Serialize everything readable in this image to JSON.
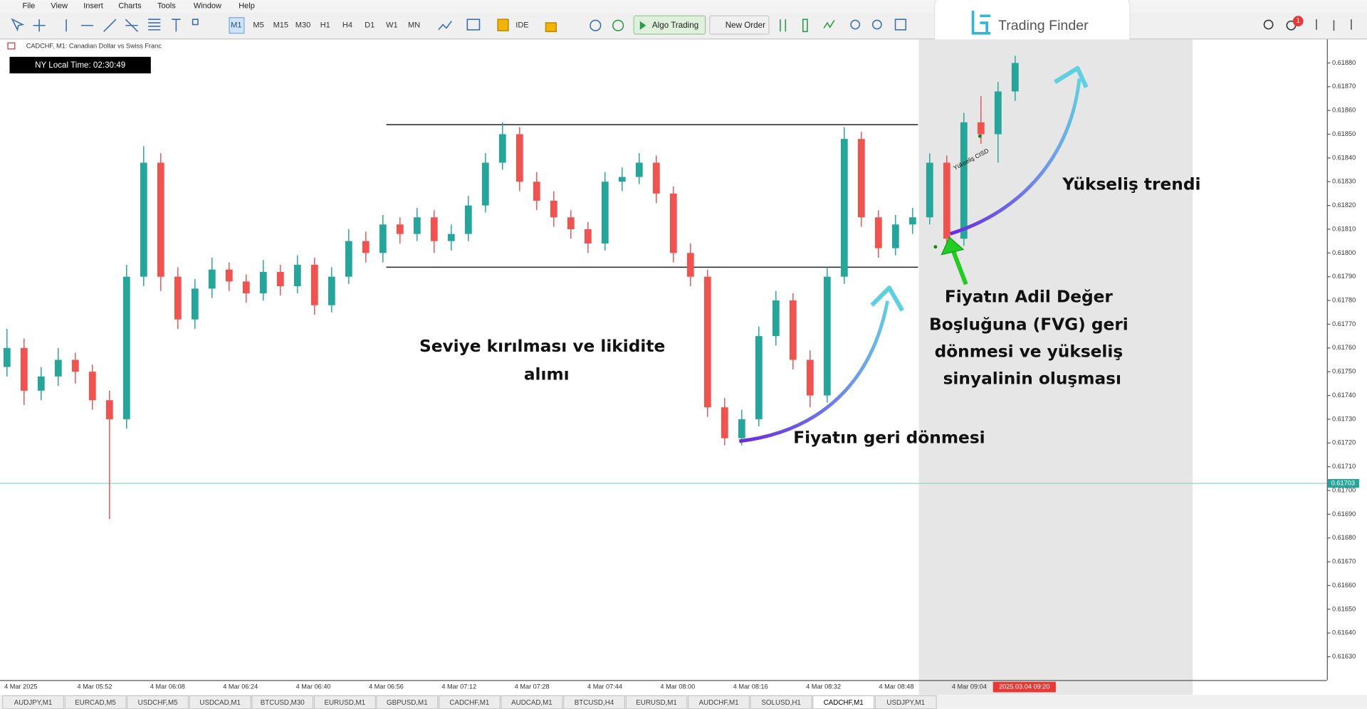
{
  "menu": [
    "File",
    "View",
    "Insert",
    "Charts",
    "Tools",
    "Window",
    "Help"
  ],
  "toolbar": {
    "timeframes": [
      "M1",
      "M5",
      "M15",
      "M30",
      "H1",
      "H4",
      "D1",
      "W1",
      "MN"
    ],
    "active_timeframe": 0,
    "ide": "IDE",
    "algo_trading": "Algo Trading",
    "new_order": "New Order",
    "notification_count": "1"
  },
  "logo": "Trading Finder",
  "chart_header": "CADCHF, M1:  Canadian Dollar vs Swiss Franc",
  "clock": "NY Local Time: 02:30:49",
  "chart_data": {
    "type": "candlestick",
    "ohlc": [
      [
        0.61752,
        0.61768,
        0.61748,
        0.6176
      ],
      [
        0.6176,
        0.61764,
        0.61736,
        0.61742
      ],
      [
        0.61742,
        0.61752,
        0.61738,
        0.61748
      ],
      [
        0.61748,
        0.6176,
        0.61744,
        0.61755
      ],
      [
        0.61755,
        0.61758,
        0.61745,
        0.6175
      ],
      [
        0.6175,
        0.61753,
        0.61734,
        0.61738
      ],
      [
        0.61738,
        0.61742,
        0.61688,
        0.6173
      ],
      [
        0.6173,
        0.61795,
        0.61726,
        0.6179
      ],
      [
        0.6179,
        0.61845,
        0.61786,
        0.61838
      ],
      [
        0.61838,
        0.61842,
        0.61784,
        0.6179
      ],
      [
        0.6179,
        0.61794,
        0.61768,
        0.61772
      ],
      [
        0.61772,
        0.61789,
        0.61768,
        0.61785
      ],
      [
        0.61785,
        0.61798,
        0.61781,
        0.61793
      ],
      [
        0.61793,
        0.61796,
        0.61784,
        0.61788
      ],
      [
        0.61788,
        0.61791,
        0.61779,
        0.61783
      ],
      [
        0.61783,
        0.61797,
        0.6178,
        0.61792
      ],
      [
        0.61792,
        0.61795,
        0.61782,
        0.61786
      ],
      [
        0.61786,
        0.61799,
        0.61783,
        0.61795
      ],
      [
        0.61795,
        0.61798,
        0.61774,
        0.61778
      ],
      [
        0.61778,
        0.61794,
        0.61775,
        0.6179
      ],
      [
        0.6179,
        0.6181,
        0.61787,
        0.61805
      ],
      [
        0.61805,
        0.61809,
        0.61796,
        0.618
      ],
      [
        0.618,
        0.61816,
        0.61796,
        0.61812
      ],
      [
        0.61812,
        0.61815,
        0.61804,
        0.61808
      ],
      [
        0.61808,
        0.61819,
        0.61805,
        0.61815
      ],
      [
        0.61815,
        0.61818,
        0.618,
        0.61805
      ],
      [
        0.61805,
        0.61812,
        0.61801,
        0.61808
      ],
      [
        0.61808,
        0.61824,
        0.61805,
        0.6182
      ],
      [
        0.6182,
        0.61842,
        0.61817,
        0.61838
      ],
      [
        0.61838,
        0.61855,
        0.61835,
        0.6185
      ],
      [
        0.6185,
        0.61853,
        0.61826,
        0.6183
      ],
      [
        0.6183,
        0.61834,
        0.61818,
        0.61822
      ],
      [
        0.61822,
        0.61826,
        0.61811,
        0.61815
      ],
      [
        0.61815,
        0.61818,
        0.61806,
        0.6181
      ],
      [
        0.6181,
        0.61813,
        0.618,
        0.61804
      ],
      [
        0.61804,
        0.61834,
        0.61801,
        0.6183
      ],
      [
        0.6183,
        0.61836,
        0.61826,
        0.61832
      ],
      [
        0.61832,
        0.61842,
        0.61829,
        0.61838
      ],
      [
        0.61838,
        0.61841,
        0.61821,
        0.61825
      ],
      [
        0.61825,
        0.61828,
        0.61796,
        0.618
      ],
      [
        0.618,
        0.61804,
        0.61786,
        0.6179
      ],
      [
        0.6179,
        0.61793,
        0.61731,
        0.61735
      ],
      [
        0.61735,
        0.61739,
        0.61719,
        0.61722
      ],
      [
        0.61722,
        0.61734,
        0.61719,
        0.6173
      ],
      [
        0.6173,
        0.61769,
        0.61727,
        0.61765
      ],
      [
        0.61765,
        0.61784,
        0.61761,
        0.6178
      ],
      [
        0.6178,
        0.61783,
        0.61751,
        0.61755
      ],
      [
        0.61755,
        0.61759,
        0.61735,
        0.6174
      ],
      [
        0.6174,
        0.61794,
        0.61737,
        0.6179
      ],
      [
        0.6179,
        0.61853,
        0.61787,
        0.61848
      ],
      [
        0.61848,
        0.61851,
        0.61811,
        0.61815
      ],
      [
        0.61815,
        0.61818,
        0.61798,
        0.61802
      ],
      [
        0.61802,
        0.61816,
        0.61799,
        0.61812
      ],
      [
        0.61812,
        0.61819,
        0.61808,
        0.61815
      ],
      [
        0.61815,
        0.61842,
        0.61812,
        0.61838
      ],
      [
        0.61838,
        0.61841,
        0.618,
        0.61806
      ],
      [
        0.61806,
        0.61859,
        0.61803,
        0.61855
      ],
      [
        0.61855,
        0.61866,
        0.61846,
        0.6185
      ],
      [
        0.6185,
        0.61872,
        0.61838,
        0.61868
      ],
      [
        0.61868,
        0.61883,
        0.61864,
        0.6188
      ]
    ],
    "up_color": "#26a69a",
    "down_color": "#ef5350",
    "ylim": [
      0.6162,
      0.6189
    ],
    "yticks": [
      {
        "value": 0.6188,
        "label": "0.61880"
      },
      {
        "value": 0.6187,
        "label": "0.61870"
      },
      {
        "value": 0.6186,
        "label": "0.61860"
      },
      {
        "value": 0.6185,
        "label": "0.61850"
      },
      {
        "value": 0.6184,
        "label": "0.61840"
      },
      {
        "value": 0.6183,
        "label": "0.61830"
      },
      {
        "value": 0.6182,
        "label": "0.61820"
      },
      {
        "value": 0.6181,
        "label": "0.61810"
      },
      {
        "value": 0.618,
        "label": "0.61800"
      },
      {
        "value": 0.6179,
        "label": "0.61790"
      },
      {
        "value": 0.6178,
        "label": "0.61780"
      },
      {
        "value": 0.6177,
        "label": "0.61770"
      },
      {
        "value": 0.6176,
        "label": "0.61760"
      },
      {
        "value": 0.6175,
        "label": "0.61750"
      },
      {
        "value": 0.6174,
        "label": "0.61740"
      },
      {
        "value": 0.6173,
        "label": "0.61730"
      },
      {
        "value": 0.6172,
        "label": "0.61720"
      },
      {
        "value": 0.6171,
        "label": "0.61710"
      },
      {
        "value": 0.617,
        "label": "0.61700"
      },
      {
        "value": 0.6169,
        "label": "0.61690"
      },
      {
        "value": 0.6168,
        "label": "0.61680"
      },
      {
        "value": 0.6167,
        "label": "0.61670"
      },
      {
        "value": 0.6166,
        "label": "0.61660"
      },
      {
        "value": 0.6165,
        "label": "0.61650"
      },
      {
        "value": 0.6164,
        "label": "0.61640"
      },
      {
        "value": 0.6163,
        "label": "0.61630"
      }
    ],
    "levels": [
      0.61854,
      0.61794
    ],
    "current_price": 0.61703,
    "x_labels": [
      "4 Mar 2025",
      "4 Mar 05:52",
      "4 Mar 06:08",
      "4 Mar 06:24",
      "4 Mar 06:40",
      "4 Mar 06:56",
      "4 Mar 07:12",
      "4 Mar 07:28",
      "4 Mar 07:44",
      "4 Mar 08:00",
      "4 Mar 08:16",
      "4 Mar 08:32",
      "4 Mar 08:48",
      "4 Mar 09:04"
    ],
    "cursor_time": "2025.03.04 09:20"
  },
  "annotations": {
    "breakout": [
      "Seviye kırılması ve likidite",
      "alımı"
    ],
    "pullback": "Fiyatın geri dönmesi",
    "trend": "Yükseliş trendi",
    "fvg": [
      "Fiyatın Adil Değer",
      "Boşluğuna (FVG) geri",
      "dönmesi ve yükseliş",
      "sinyalinin oluşması"
    ],
    "cisd": "Yükseliş CISD"
  },
  "tabs": [
    "AUDJPY,M1",
    "EURCAD,M5",
    "USDCHF,M5",
    "USDCAD,M1",
    "BTCUSD,M30",
    "EURUSD,M1",
    "GBPUSD,M1",
    "CADCHF,M1",
    "AUDCAD,M1",
    "BTCUSD,H4",
    "EURUSD,M1",
    "AUDCHF,M1",
    "SOLUSD,H1",
    "CADCHF,M1",
    "USDJPY,M1"
  ],
  "active_tab": 13
}
